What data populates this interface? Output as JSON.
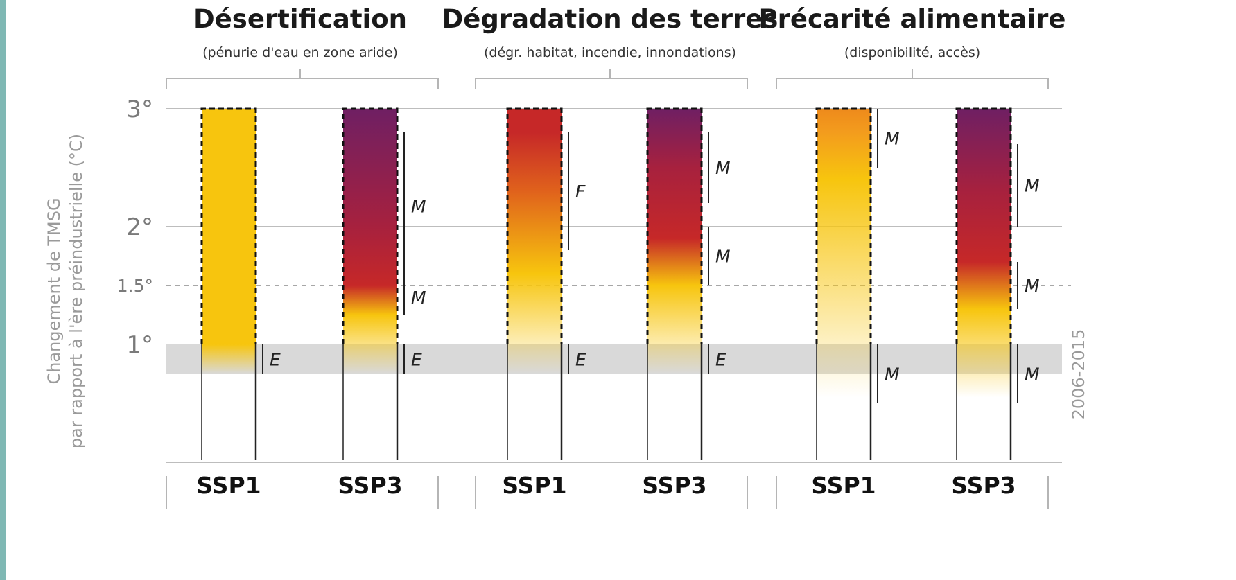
{
  "chart_data": {
    "type": "bar",
    "ylabel_lines": [
      "Changement de TMSG",
      "par rapport à l'ère préindustrielle (°C)"
    ],
    "y_ticks": [
      {
        "value": 3,
        "label": "3°"
      },
      {
        "value": 2,
        "label": "2°"
      },
      {
        "value": 1.5,
        "label": "1.5°"
      },
      {
        "value": 1,
        "label": "1°"
      }
    ],
    "reference_band": {
      "label": "2006-2015",
      "from": 0.75,
      "to": 1.0
    },
    "groups": [
      {
        "title": "Désertification",
        "subtitle": "(pénurie d'eau en zone aride)",
        "bars": [
          {
            "scenario": "SSP1",
            "top": 3.0,
            "stops": [
              {
                "t": 0.45,
                "color": "#f7c50e"
              },
              {
                "t": 0.75,
                "color": "#f7c50e"
              },
              {
                "t": 1.0,
                "color": "#f7c50e"
              },
              {
                "t": 3.0,
                "color": "#f7c50e"
              }
            ],
            "fade_to": 0.75,
            "confidence": [
              {
                "from": 0.75,
                "to": 1.0,
                "label": "E"
              }
            ]
          },
          {
            "scenario": "SSP3",
            "top": 3.0,
            "stops": [
              {
                "t": 0.75,
                "color": "#f7c50e"
              },
              {
                "t": 1.25,
                "color": "#f7c50e"
              },
              {
                "t": 1.5,
                "color": "#c62828"
              },
              {
                "t": 2.0,
                "color": "#a7213e"
              },
              {
                "t": 3.0,
                "color": "#6f1f63"
              }
            ],
            "fade_to": 0.75,
            "confidence": [
              {
                "from": 1.25,
                "to": 1.55,
                "label": "M"
              },
              {
                "from": 1.55,
                "to": 2.8,
                "label": "M"
              },
              {
                "from": 0.75,
                "to": 1.0,
                "label": "E"
              }
            ]
          }
        ]
      },
      {
        "title": "Dégradation des terres",
        "subtitle": "(dégr. habitat, incendie, innondations)",
        "bars": [
          {
            "scenario": "SSP1",
            "top": 3.0,
            "stops": [
              {
                "t": 0.6,
                "color": "#f7c50e"
              },
              {
                "t": 1.6,
                "color": "#f7c50e"
              },
              {
                "t": 2.3,
                "color": "#e0621c"
              },
              {
                "t": 2.8,
                "color": "#c62828"
              },
              {
                "t": 3.0,
                "color": "#c62828"
              }
            ],
            "fade_to": 0.75,
            "confidence": [
              {
                "from": 1.8,
                "to": 2.8,
                "label": "F"
              },
              {
                "from": 0.75,
                "to": 1.0,
                "label": "E"
              }
            ]
          },
          {
            "scenario": "SSP3",
            "top": 3.0,
            "stops": [
              {
                "t": 0.75,
                "color": "#f7c50e"
              },
              {
                "t": 1.5,
                "color": "#f7c50e"
              },
              {
                "t": 1.9,
                "color": "#c62828"
              },
              {
                "t": 2.5,
                "color": "#a7213e"
              },
              {
                "t": 3.0,
                "color": "#6f1f63"
              }
            ],
            "fade_to": 0.75,
            "confidence": [
              {
                "from": 1.5,
                "to": 2.0,
                "label": "M"
              },
              {
                "from": 2.2,
                "to": 2.8,
                "label": "M"
              },
              {
                "from": 0.75,
                "to": 1.0,
                "label": "E"
              }
            ]
          }
        ]
      },
      {
        "title": "Précarité alimentaire",
        "subtitle": "(disponibilité, accès)",
        "bars": [
          {
            "scenario": "SSP1",
            "top": 3.0,
            "stops": [
              {
                "t": 0.55,
                "color": "#f7c50e"
              },
              {
                "t": 2.4,
                "color": "#f7c50e"
              },
              {
                "t": 2.8,
                "color": "#f39c1d"
              },
              {
                "t": 3.0,
                "color": "#ee8a1c"
              }
            ],
            "fade_to": 0.55,
            "confidence": [
              {
                "from": 2.5,
                "to": 3.0,
                "label": "M"
              },
              {
                "from": 0.5,
                "to": 1.0,
                "label": "M"
              }
            ]
          },
          {
            "scenario": "SSP3",
            "top": 3.0,
            "stops": [
              {
                "t": 0.55,
                "color": "#f7c50e"
              },
              {
                "t": 1.3,
                "color": "#f7c50e"
              },
              {
                "t": 1.7,
                "color": "#c62828"
              },
              {
                "t": 2.3,
                "color": "#a7213e"
              },
              {
                "t": 3.0,
                "color": "#6f1f63"
              }
            ],
            "fade_to": 0.55,
            "confidence": [
              {
                "from": 2.0,
                "to": 2.7,
                "label": "M"
              },
              {
                "from": 1.3,
                "to": 1.7,
                "label": "M"
              },
              {
                "from": 0.5,
                "to": 1.0,
                "label": "M"
              }
            ]
          }
        ]
      }
    ]
  }
}
